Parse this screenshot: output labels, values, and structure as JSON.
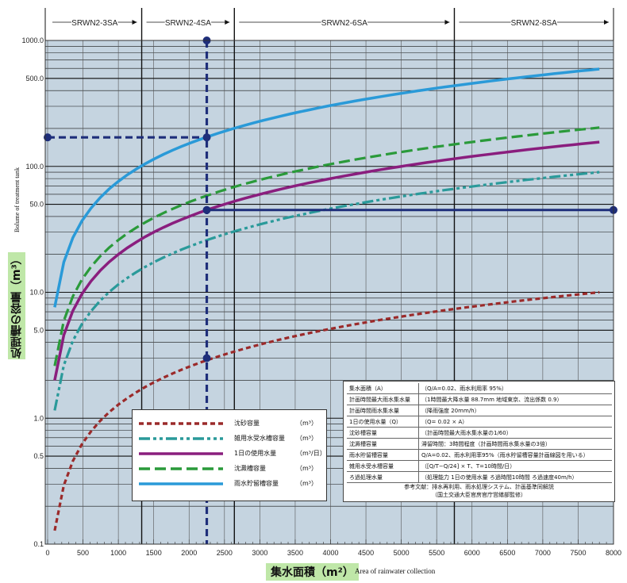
{
  "chart_data": {
    "type": "line",
    "xlabel": "集水面積（m²）",
    "xlabel_en": "Area of rainwater collection",
    "ylabel": "処理槽の容量（m³）",
    "ylabel_en": "Bolume of treatment tank",
    "xlim": [
      0,
      8000
    ],
    "ylim": [
      0.1,
      1000
    ],
    "y_scale": "log",
    "grid": true,
    "x_ticks": [
      "0",
      "500",
      "1000",
      "1500",
      "2000",
      "2500",
      "3000",
      "3500",
      "4000",
      "4500",
      "5000",
      "5500",
      "6000",
      "6500",
      "7000",
      "7500",
      "8000"
    ],
    "y_ticks": [
      {
        "value": 0.1,
        "label": "0.1"
      },
      {
        "value": 0.5,
        "label": "0.5"
      },
      {
        "value": 1.0,
        "label": "1.0"
      },
      {
        "value": 5.0,
        "label": "5.0"
      },
      {
        "value": 10.0,
        "label": "10.0"
      },
      {
        "value": 50.0,
        "label": "50.0"
      },
      {
        "value": 100.0,
        "label": "100.0"
      },
      {
        "value": 500.0,
        "label": "500.0"
      },
      {
        "value": 1000.0,
        "label": "1000.0"
      }
    ],
    "bands": [
      {
        "label": "SRWN2-3SA",
        "from": 0,
        "to": 1330
      },
      {
        "label": "SRWN2-4SA",
        "from": 1330,
        "to": 2640
      },
      {
        "label": "SRWN2-6SA",
        "from": 2640,
        "to": 5750
      },
      {
        "label": "SRWN2-8SA",
        "from": 5750,
        "to": 8000
      }
    ],
    "band_dividers": [
      1330,
      2640,
      5750
    ],
    "series": [
      {
        "name": "沈砂容量",
        "unit": "（m³）",
        "color": "#9b2a2a",
        "dash": "dotted",
        "x": [
          100,
          500,
          1000,
          2000,
          3000,
          4000,
          5000,
          6000,
          7000,
          7800
        ],
        "y": [
          0.14,
          0.63,
          1.25,
          2.5,
          3.8,
          5.0,
          6.3,
          7.5,
          8.8,
          10.0
        ]
      },
      {
        "name": "雑用水受水槽容量",
        "unit": "（m³）",
        "color": "#2a9a9a",
        "dash": "dashdotdot",
        "x": [
          100,
          500,
          1000,
          2000,
          3000,
          4000,
          5000,
          6000,
          7000,
          7800
        ],
        "y": [
          1.15,
          5.8,
          11.5,
          23,
          35,
          46,
          58,
          69,
          81,
          90
        ]
      },
      {
        "name": "1日の使用水量",
        "unit": "（m³/日）",
        "color": "#8a1e7e",
        "dash": "solid",
        "x": [
          100,
          500,
          1000,
          2000,
          3000,
          4000,
          5000,
          6000,
          7000,
          7800
        ],
        "y": [
          2.0,
          10,
          20,
          40,
          60,
          80,
          100,
          120,
          140,
          156
        ]
      },
      {
        "name": "沈澱槽容量",
        "unit": "（m³）",
        "color": "#2a9a3a",
        "dash": "dashed",
        "x": [
          100,
          500,
          1000,
          2000,
          3000,
          4000,
          5000,
          6000,
          7000,
          7800
        ],
        "y": [
          2.6,
          13,
          26,
          52,
          78,
          104,
          130,
          156,
          182,
          203
        ]
      },
      {
        "name": "雨水貯留槽容量",
        "unit": "（m³）",
        "color": "#2a9ad8",
        "dash": "solid",
        "x": [
          100,
          500,
          1000,
          2000,
          3000,
          4000,
          5000,
          6000,
          7000,
          7800
        ],
        "y": [
          7.5,
          38,
          76,
          152,
          228,
          304,
          380,
          456,
          532,
          593
        ]
      }
    ],
    "annotations": {
      "vertical_guide_x": 2250,
      "horizontal_guide_1": {
        "y": 170,
        "from_x": 0,
        "to_x": 2250
      },
      "horizontal_guide_2": {
        "y": 45,
        "from_x": 2250,
        "to_x": 8000
      },
      "points": [
        {
          "x": 0,
          "y": 170
        },
        {
          "x": 2250,
          "y": 170
        },
        {
          "x": 2250,
          "y": 45
        },
        {
          "x": 8000,
          "y": 45
        },
        {
          "x": 2250,
          "y": 3.0
        },
        {
          "x": 2250,
          "y": 1000
        }
      ],
      "guide_color": "#1e2e7a"
    }
  },
  "legend": {
    "rows": [
      {
        "name": "沈砂容量",
        "unit": "（m³）"
      },
      {
        "name": "雑用水受水槽容量",
        "unit": "（m³）"
      },
      {
        "name": "1日の使用水量",
        "unit": "（m³/日）"
      },
      {
        "name": "沈澱槽容量",
        "unit": "（m³）"
      },
      {
        "name": "雨水貯留槽容量",
        "unit": "（m³）"
      }
    ]
  },
  "info_table": {
    "rows": [
      {
        "k": "集水面積（A）",
        "v": "（Q/A=0.02、雨水利用率 95%）"
      },
      {
        "k": "計画時間最大雨水集水量",
        "v": "（1時間最大降水量 88.7mm 地域東京、流出係数 0.9）"
      },
      {
        "k": "計画時間雨水集水量",
        "v": "（降雨強度 20mm/h）"
      },
      {
        "k": "1日の使用水量（Q）",
        "v": "（Q= 0.02 × A）"
      },
      {
        "k": "沈砂槽容量",
        "v": "（計画時間最大雨水集水量の1/60）"
      },
      {
        "k": "沈澱槽容量",
        "v": "滞留時間：3時間程度（計画時間雨水集水量の3倍）"
      },
      {
        "k": "雨水貯留槽容量",
        "v": "Q/A=0.02、雨水利用率95%（雨水貯留槽容量計画線図を用いる）"
      },
      {
        "k": "雑用水受水槽容量",
        "v": "（[Q/T−Q/24] × T、T=10時間/日）"
      },
      {
        "k": "ろ過処理水量",
        "v": "（処理能力 1日の使用水量 ろ過時間10時間 ろ過速度40m/h）"
      }
    ],
    "reference_line1": "参考文献：排水再利用、雨水処理システム、計画基準同解説",
    "reference_line2": "（国土交通大臣官房官庁営繕部監修）"
  }
}
